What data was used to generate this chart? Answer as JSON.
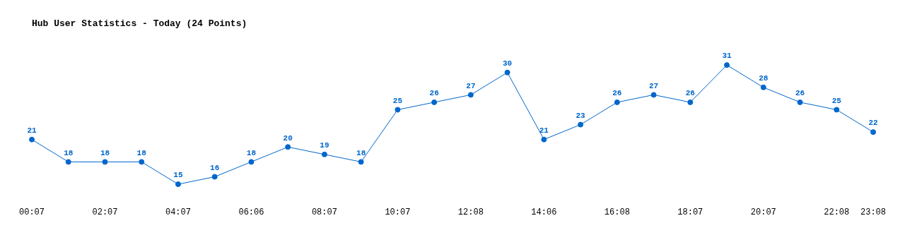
{
  "chart_data": {
    "type": "line",
    "title": "Hub User Statistics - Today (24 Points)",
    "categories": [
      "00:07",
      null,
      "02:07",
      null,
      "04:07",
      null,
      "06:06",
      null,
      "08:07",
      null,
      "10:07",
      null,
      "12:08",
      null,
      "14:06",
      null,
      "16:08",
      null,
      "18:07",
      null,
      "20:07",
      null,
      "22:08",
      "23:08"
    ],
    "series": [
      {
        "color": "#0066cc",
        "values": [
          21,
          18,
          18,
          18,
          15,
          16,
          18,
          20,
          19,
          18,
          25,
          26,
          27,
          30,
          21,
          23,
          26,
          27,
          26,
          31,
          28,
          26,
          25,
          22
        ]
      }
    ],
    "data_labels": true,
    "marker": "circle",
    "line_style": "solid",
    "grid": false,
    "legend": false,
    "tick_labels": "x"
  }
}
